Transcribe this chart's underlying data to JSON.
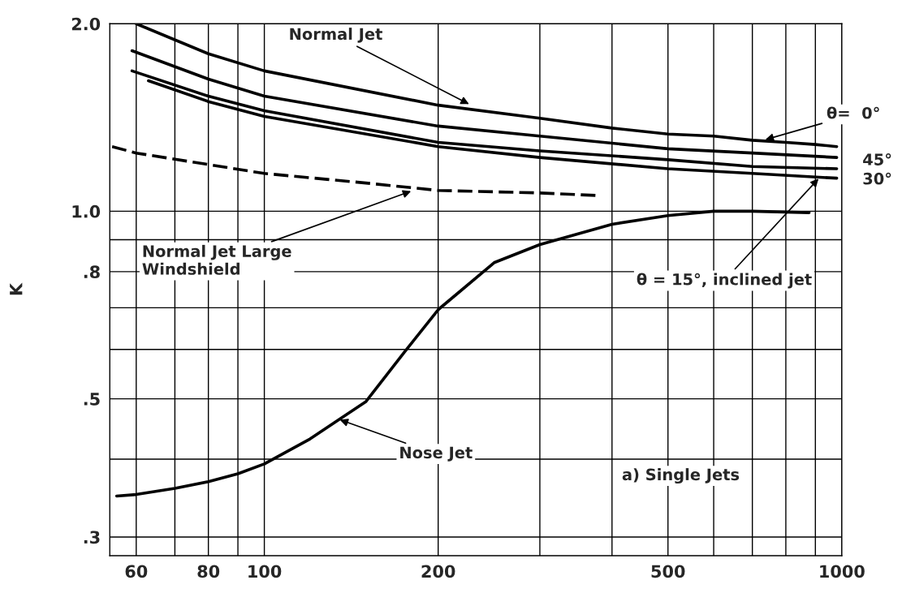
{
  "chart_data": {
    "type": "line",
    "ylabel": "K",
    "log": "xy",
    "grid": true,
    "xlim": [
      54,
      1000
    ],
    "ylim": [
      0.28,
      2.0
    ],
    "xticks": [
      60,
      {
        "value": 70,
        "label": null
      },
      80,
      {
        "value": 90,
        "label": null
      },
      100,
      200,
      {
        "value": 300,
        "label": null
      },
      {
        "value": 400,
        "label": null
      },
      500,
      {
        "value": 600,
        "label": null
      },
      {
        "value": 700,
        "label": null
      },
      {
        "value": 800,
        "label": null
      },
      {
        "value": 900,
        "label": null
      },
      1000
    ],
    "yticks": [
      {
        "value": 0.3,
        "label": ".3"
      },
      {
        "value": 0.4,
        "label": null
      },
      {
        "value": 0.5,
        "label": ".5"
      },
      {
        "value": 0.6,
        "label": null
      },
      {
        "value": 0.7,
        "label": null
      },
      {
        "value": 0.8,
        "label": ".8"
      },
      {
        "value": 0.9,
        "label": null
      },
      {
        "value": 1.0,
        "label": "1.0"
      },
      {
        "value": 2.0,
        "label": "2.0"
      }
    ],
    "series": [
      {
        "color": "#000000",
        "line_style": "solid",
        "x": [
          60,
          80,
          100,
          200,
          300,
          400,
          500,
          600,
          700,
          800,
          900,
          980
        ],
        "values": [
          2.0,
          1.79,
          1.68,
          1.48,
          1.41,
          1.36,
          1.33,
          1.32,
          1.3,
          1.29,
          1.28,
          1.27
        ]
      },
      {
        "color": "#000000",
        "line_style": "solid",
        "x": [
          59,
          80,
          100,
          200,
          300,
          500,
          700,
          980
        ],
        "values": [
          1.81,
          1.63,
          1.53,
          1.37,
          1.32,
          1.26,
          1.24,
          1.22
        ]
      },
      {
        "color": "#000000",
        "line_style": "solid",
        "x": [
          59,
          80,
          100,
          200,
          300,
          500,
          700,
          980
        ],
        "values": [
          1.68,
          1.53,
          1.45,
          1.29,
          1.25,
          1.21,
          1.18,
          1.17
        ]
      },
      {
        "color": "#000000",
        "line_style": "solid",
        "x": [
          63,
          80,
          100,
          200,
          300,
          500,
          700,
          980
        ],
        "values": [
          1.62,
          1.5,
          1.42,
          1.27,
          1.22,
          1.17,
          1.15,
          1.13
        ]
      },
      {
        "color": "#000000",
        "line_style": "dashed",
        "x": [
          54.5,
          60,
          100,
          150,
          200,
          300,
          376
        ],
        "values": [
          1.27,
          1.24,
          1.15,
          1.11,
          1.08,
          1.07,
          1.06
        ]
      },
      {
        "color": "#000000",
        "line_style": "solid",
        "x": [
          55.5,
          60,
          70,
          80,
          90,
          100,
          120,
          150,
          175,
          200,
          250,
          300,
          400,
          500,
          600,
          700,
          878
        ],
        "values": [
          0.349,
          0.351,
          0.359,
          0.368,
          0.379,
          0.393,
          0.431,
          0.495,
          0.595,
          0.695,
          0.827,
          0.884,
          0.953,
          0.984,
          1.0,
          1.0,
          0.995
        ]
      }
    ],
    "annotations": [
      {
        "text": "Normal Jet",
        "x": 228,
        "y": 1.48
      },
      {
        "text": "θ=  0°",
        "x": 731,
        "y": 1.3
      },
      {
        "text": "45°",
        "x": 980,
        "y": 1.22
      },
      {
        "text": "30°",
        "x": 980,
        "y": 1.17
      },
      {
        "text": "θ = 15°, inclined jet",
        "x": 917,
        "y": 1.135
      },
      {
        "text": "Normal Jet Large\nWindshield",
        "x": 181,
        "y": 1.08
      },
      {
        "text": "Nose Jet",
        "x": 134,
        "y": 0.464
      },
      "a) Single Jets"
    ]
  }
}
